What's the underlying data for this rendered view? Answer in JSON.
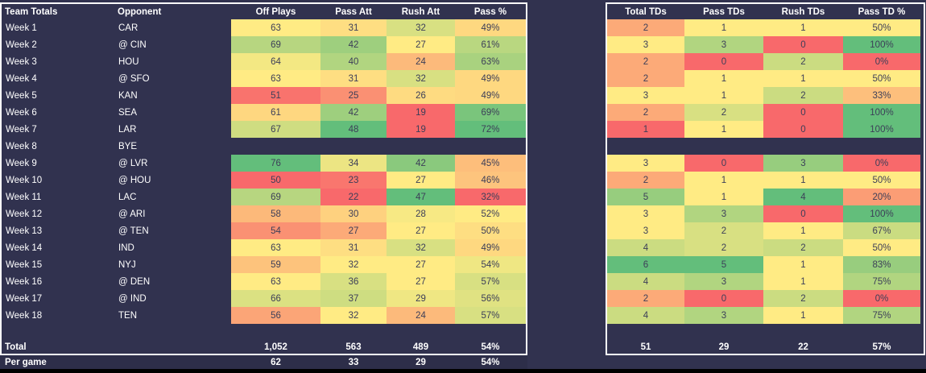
{
  "colors": {
    "background": "#31324F",
    "per_game_bg": "#2D2E49",
    "table_border": "#FFFFFF",
    "bottom_edge": "#000000",
    "label_text": "#FFFFFF",
    "cell_text": "#3C3E58",
    "heat_min": "#F8696B",
    "heat_mid": "#FFEB84",
    "heat_max": "#63BE7B"
  },
  "left_table": {
    "headers": [
      "Team Totals",
      "Opponent",
      "Off Plays",
      "Pass Att",
      "Rush Att",
      "Pass %"
    ],
    "formats": [
      "int",
      "int",
      "int",
      "pct"
    ],
    "total_label": "Total",
    "per_game_label": "Per game",
    "totals": [
      "1,052",
      "563",
      "489",
      "54%"
    ],
    "per_game": [
      "62",
      "33",
      "29",
      "54%"
    ]
  },
  "right_table": {
    "headers": [
      "Total TDs",
      "Pass TDs",
      "Rush TDs",
      "Pass TD %"
    ],
    "formats": [
      "int",
      "int",
      "int",
      "pct"
    ],
    "totals": [
      "51",
      "29",
      "22",
      "57%"
    ]
  },
  "rows": [
    {
      "week": "Week 1",
      "opp": "CAR",
      "off": [
        63,
        31,
        32,
        49
      ],
      "td": [
        2,
        1,
        1,
        50
      ]
    },
    {
      "week": "Week 2",
      "opp": "@ CIN",
      "off": [
        69,
        42,
        27,
        61
      ],
      "td": [
        3,
        3,
        0,
        100
      ]
    },
    {
      "week": "Week 3",
      "opp": "HOU",
      "off": [
        64,
        40,
        24,
        63
      ],
      "td": [
        2,
        0,
        2,
        0
      ]
    },
    {
      "week": "Week 4",
      "opp": "@ SFO",
      "off": [
        63,
        31,
        32,
        49
      ],
      "td": [
        2,
        1,
        1,
        50
      ]
    },
    {
      "week": "Week 5",
      "opp": "KAN",
      "off": [
        51,
        25,
        26,
        49
      ],
      "td": [
        3,
        1,
        2,
        33
      ]
    },
    {
      "week": "Week 6",
      "opp": "SEA",
      "off": [
        61,
        42,
        19,
        69
      ],
      "td": [
        2,
        2,
        0,
        100
      ]
    },
    {
      "week": "Week 7",
      "opp": "LAR",
      "off": [
        67,
        48,
        19,
        72
      ],
      "td": [
        1,
        1,
        0,
        100
      ]
    },
    {
      "week": "Week 8",
      "opp": "BYE",
      "off": null,
      "td": null
    },
    {
      "week": "Week 9",
      "opp": "@ LVR",
      "off": [
        76,
        34,
        42,
        45
      ],
      "td": [
        3,
        0,
        3,
        0
      ]
    },
    {
      "week": "Week 10",
      "opp": "@ HOU",
      "off": [
        50,
        23,
        27,
        46
      ],
      "td": [
        2,
        1,
        1,
        50
      ]
    },
    {
      "week": "Week 11",
      "opp": "LAC",
      "off": [
        69,
        22,
        47,
        32
      ],
      "td": [
        5,
        1,
        4,
        20
      ]
    },
    {
      "week": "Week 12",
      "opp": "@ ARI",
      "off": [
        58,
        30,
        28,
        52
      ],
      "td": [
        3,
        3,
        0,
        100
      ]
    },
    {
      "week": "Week 13",
      "opp": "@ TEN",
      "off": [
        54,
        27,
        27,
        50
      ],
      "td": [
        3,
        2,
        1,
        67
      ]
    },
    {
      "week": "Week 14",
      "opp": "IND",
      "off": [
        63,
        31,
        32,
        49
      ],
      "td": [
        4,
        2,
        2,
        50
      ]
    },
    {
      "week": "Week 15",
      "opp": "NYJ",
      "off": [
        59,
        32,
        27,
        54
      ],
      "td": [
        6,
        5,
        1,
        83
      ]
    },
    {
      "week": "Week 16",
      "opp": "@ DEN",
      "off": [
        63,
        36,
        27,
        57
      ],
      "td": [
        4,
        3,
        1,
        75
      ]
    },
    {
      "week": "Week 17",
      "opp": "@ IND",
      "off": [
        66,
        37,
        29,
        56
      ],
      "td": [
        2,
        0,
        2,
        0
      ]
    },
    {
      "week": "Week 18",
      "opp": "TEN",
      "off": [
        56,
        32,
        24,
        57
      ],
      "td": [
        4,
        3,
        1,
        75
      ]
    }
  ]
}
